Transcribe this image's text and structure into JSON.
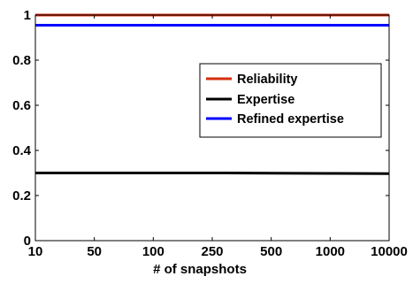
{
  "chart_data": {
    "type": "line",
    "title": "",
    "xlabel": "# of snapshots",
    "ylabel": "",
    "categories": [
      "10",
      "50",
      "100",
      "250",
      "500",
      "1000",
      "10000"
    ],
    "ylim": [
      0,
      1
    ],
    "yticks": [
      "0",
      "0.2",
      "0.4",
      "0.6",
      "0.8",
      "1"
    ],
    "grid": false,
    "legend_position": "right",
    "series": [
      {
        "name": "Reliability",
        "color": "#d62d0e",
        "values": [
          1.0,
          1.0,
          1.0,
          1.0,
          1.0,
          1.0,
          1.0
        ]
      },
      {
        "name": "Expertise",
        "color": "#000000",
        "values": [
          0.3,
          0.3,
          0.3,
          0.3,
          0.299,
          0.298,
          0.297
        ]
      },
      {
        "name": "Refined expertise",
        "color": "#0000ff",
        "values": [
          0.955,
          0.955,
          0.955,
          0.955,
          0.955,
          0.955,
          0.955
        ]
      }
    ]
  }
}
